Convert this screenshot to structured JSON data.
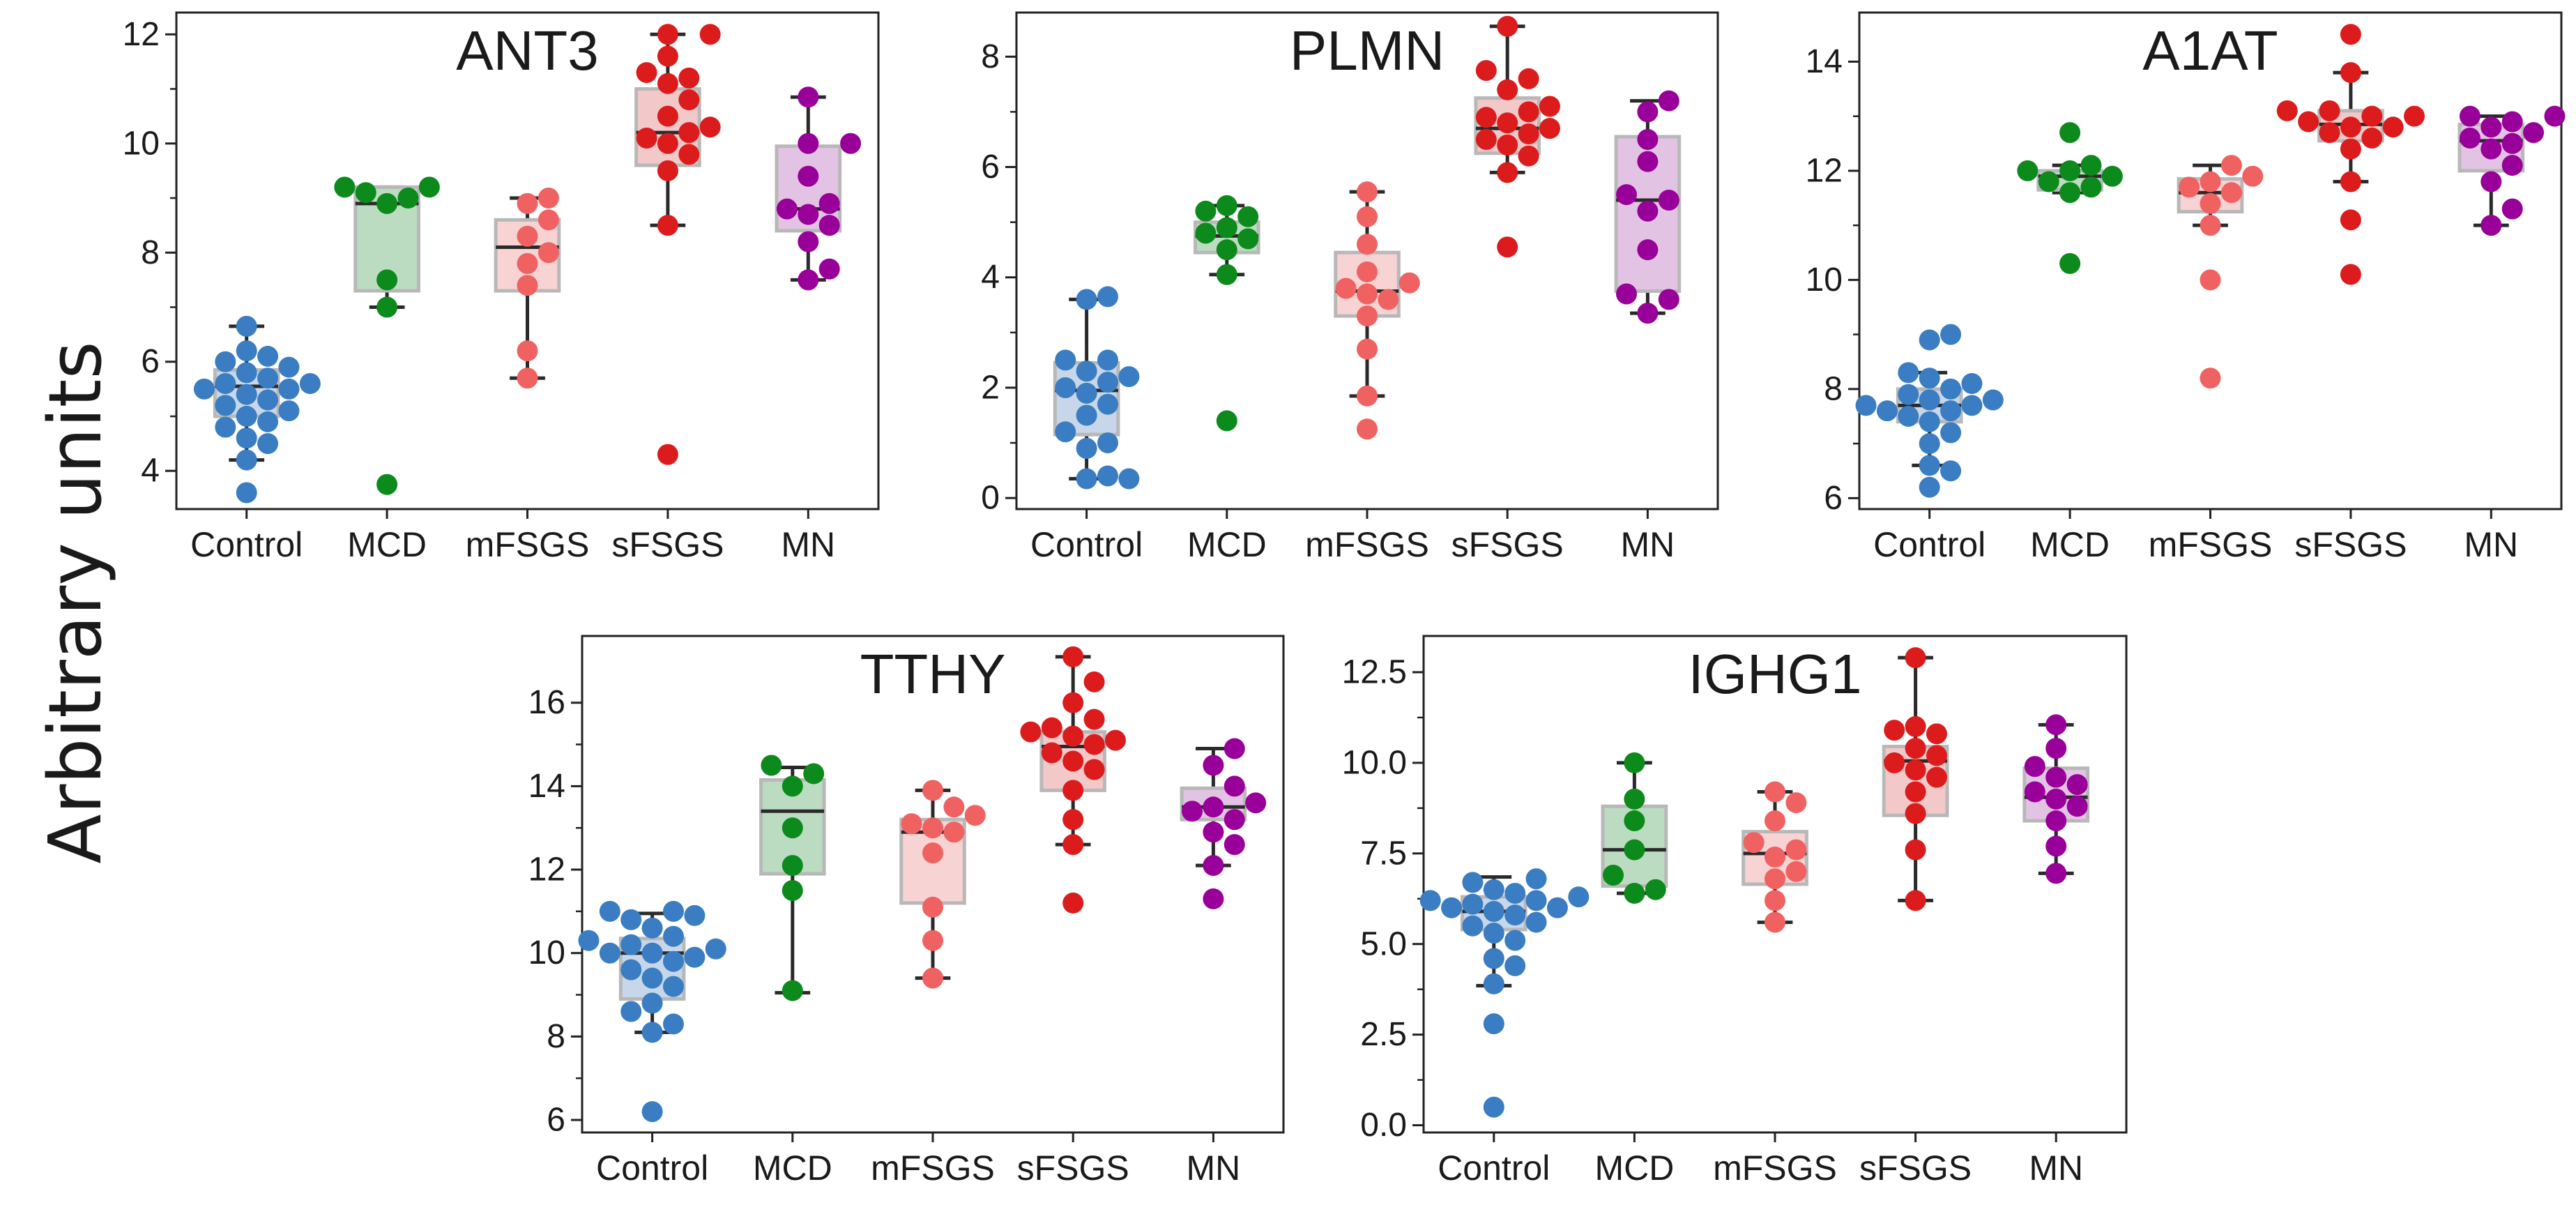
{
  "figure": {
    "ylabel": "Arbitrary units",
    "categories": [
      "Control",
      "MCD",
      "mFSGS",
      "sFSGS",
      "MN"
    ],
    "group_colors": {
      "Control": "#3a7dc2",
      "MCD": "#0c8a1c",
      "mFSGS": "#f06262",
      "sFSGS": "#dc1c1c",
      "MN": "#990099"
    },
    "box_fill_colors": {
      "Control": "#c7d6e8",
      "MCD": "#bcdcc2",
      "mFSGS": "#f8d3d3",
      "sFSGS": "#f3c8c8",
      "MN": "#e3c3e3"
    }
  },
  "chart_data": [
    {
      "type": "box_swarm",
      "title": "ANT3",
      "categories": [
        "Control",
        "MCD",
        "mFSGS",
        "sFSGS",
        "MN"
      ],
      "ylim": [
        3.3,
        12.4
      ],
      "yticks": [
        4,
        6,
        8,
        10,
        12
      ],
      "boxes": [
        {
          "group": "Control",
          "min": 4.2,
          "q1": 5.0,
          "median": 5.55,
          "q3": 5.85,
          "max": 6.65
        },
        {
          "group": "MCD",
          "min": 7.0,
          "q1": 7.3,
          "median": 8.9,
          "q3": 9.2,
          "max": 9.2
        },
        {
          "group": "mFSGS",
          "min": 5.7,
          "q1": 7.3,
          "median": 8.1,
          "q3": 8.6,
          "max": 9.0
        },
        {
          "group": "sFSGS",
          "min": 8.5,
          "q1": 9.6,
          "median": 10.2,
          "q3": 11.0,
          "max": 12.0
        },
        {
          "group": "MN",
          "min": 7.5,
          "q1": 8.4,
          "median": 8.8,
          "q3": 9.95,
          "max": 10.85
        }
      ],
      "points": {
        "Control": [
          3.6,
          4.2,
          4.5,
          4.6,
          4.8,
          4.9,
          5.0,
          5.1,
          5.2,
          5.3,
          5.4,
          5.5,
          5.5,
          5.6,
          5.6,
          5.7,
          5.8,
          5.9,
          6.0,
          6.1,
          6.2,
          6.65
        ],
        "MCD": [
          3.75,
          7.0,
          7.5,
          8.9,
          9.0,
          9.1,
          9.2,
          9.2
        ],
        "mFSGS": [
          5.7,
          6.2,
          7.4,
          7.8,
          8.0,
          8.3,
          8.6,
          8.9,
          9.0
        ],
        "sFSGS": [
          4.3,
          8.5,
          9.5,
          9.8,
          10.0,
          10.1,
          10.2,
          10.3,
          10.5,
          10.8,
          11.1,
          11.2,
          11.3,
          11.6,
          12.0,
          12.0
        ],
        "MN": [
          7.5,
          7.7,
          8.2,
          8.5,
          8.7,
          8.8,
          8.9,
          9.4,
          10.0,
          10.0,
          10.85
        ]
      }
    },
    {
      "type": "box_swarm",
      "title": "PLMN",
      "categories": [
        "Control",
        "MCD",
        "mFSGS",
        "sFSGS",
        "MN"
      ],
      "ylim": [
        -0.2,
        8.8
      ],
      "yticks": [
        0,
        2,
        4,
        6,
        8
      ],
      "boxes": [
        {
          "group": "Control",
          "min": 0.35,
          "q1": 1.15,
          "median": 1.95,
          "q3": 2.45,
          "max": 3.6
        },
        {
          "group": "MCD",
          "min": 4.05,
          "q1": 4.45,
          "median": 4.75,
          "q3": 5.0,
          "max": 5.3
        },
        {
          "group": "mFSGS",
          "min": 1.85,
          "q1": 3.3,
          "median": 3.75,
          "q3": 4.45,
          "max": 5.55
        },
        {
          "group": "sFSGS",
          "min": 5.9,
          "q1": 6.25,
          "median": 6.7,
          "q3": 7.25,
          "max": 8.55
        },
        {
          "group": "MN",
          "min": 3.35,
          "q1": 3.75,
          "median": 5.4,
          "q3": 6.55,
          "max": 7.2
        }
      ],
      "points": {
        "Control": [
          0.35,
          0.35,
          0.4,
          0.9,
          1.0,
          1.2,
          1.5,
          1.7,
          1.9,
          2.0,
          2.1,
          2.2,
          2.3,
          2.5,
          2.5,
          3.6,
          3.65
        ],
        "MCD": [
          1.4,
          4.05,
          4.5,
          4.7,
          4.8,
          4.9,
          5.1,
          5.2,
          5.3
        ],
        "mFSGS": [
          1.25,
          1.85,
          2.7,
          3.3,
          3.6,
          3.7,
          3.8,
          3.9,
          4.1,
          4.6,
          5.1,
          5.55
        ],
        "sFSGS": [
          4.55,
          5.9,
          6.2,
          6.4,
          6.5,
          6.6,
          6.7,
          6.8,
          6.9,
          7.0,
          7.1,
          7.4,
          7.6,
          7.75,
          8.55
        ],
        "MN": [
          3.35,
          3.6,
          3.7,
          4.5,
          5.2,
          5.4,
          5.5,
          6.1,
          6.5,
          7.0,
          7.2
        ]
      }
    },
    {
      "type": "box_swarm",
      "title": "A1AT",
      "categories": [
        "Control",
        "MCD",
        "mFSGS",
        "sFSGS",
        "MN"
      ],
      "ylim": [
        5.8,
        14.9
      ],
      "yticks": [
        6,
        8,
        10,
        12,
        14
      ],
      "boxes": [
        {
          "group": "Control",
          "min": 6.6,
          "q1": 7.4,
          "median": 7.7,
          "q3": 8.0,
          "max": 8.3
        },
        {
          "group": "MCD",
          "min": 11.6,
          "q1": 11.65,
          "median": 11.9,
          "q3": 12.0,
          "max": 12.1
        },
        {
          "group": "mFSGS",
          "min": 11.0,
          "q1": 11.25,
          "median": 11.6,
          "q3": 11.85,
          "max": 12.1
        },
        {
          "group": "sFSGS",
          "min": 11.8,
          "q1": 12.55,
          "median": 12.85,
          "q3": 13.1,
          "max": 13.8
        },
        {
          "group": "MN",
          "min": 11.0,
          "q1": 12.0,
          "median": 12.55,
          "q3": 12.85,
          "max": 13.0
        }
      ],
      "points": {
        "Control": [
          6.2,
          6.5,
          6.6,
          7.0,
          7.2,
          7.4,
          7.5,
          7.6,
          7.6,
          7.7,
          7.7,
          7.8,
          7.8,
          7.9,
          8.0,
          8.1,
          8.2,
          8.3,
          8.9,
          9.0
        ],
        "MCD": [
          10.3,
          11.6,
          11.7,
          11.8,
          11.9,
          12.0,
          12.0,
          12.1,
          12.7
        ],
        "mFSGS": [
          8.2,
          10.0,
          11.0,
          11.4,
          11.6,
          11.7,
          11.8,
          11.9,
          12.1
        ],
        "sFSGS": [
          10.1,
          11.1,
          11.8,
          12.4,
          12.6,
          12.7,
          12.8,
          12.8,
          12.9,
          13.0,
          13.0,
          13.1,
          13.1,
          13.8,
          14.5
        ],
        "MN": [
          11.0,
          11.3,
          11.8,
          12.1,
          12.4,
          12.5,
          12.6,
          12.7,
          12.8,
          12.9,
          13.0,
          13.0
        ]
      }
    },
    {
      "type": "box_swarm",
      "title": "TTHY",
      "categories": [
        "Control",
        "MCD",
        "mFSGS",
        "sFSGS",
        "MN"
      ],
      "ylim": [
        5.7,
        17.6
      ],
      "yticks": [
        6,
        8,
        10,
        12,
        14,
        16
      ],
      "boxes": [
        {
          "group": "Control",
          "min": 8.1,
          "q1": 8.9,
          "median": 10.0,
          "q3": 10.35,
          "max": 10.95
        },
        {
          "group": "MCD",
          "min": 9.05,
          "q1": 11.9,
          "median": 13.4,
          "q3": 14.15,
          "max": 14.45
        },
        {
          "group": "mFSGS",
          "min": 9.4,
          "q1": 11.2,
          "median": 12.9,
          "q3": 13.2,
          "max": 13.9
        },
        {
          "group": "sFSGS",
          "min": 12.6,
          "q1": 13.9,
          "median": 14.95,
          "q3": 15.3,
          "max": 17.1
        },
        {
          "group": "MN",
          "min": 12.1,
          "q1": 13.2,
          "median": 13.5,
          "q3": 13.95,
          "max": 14.9
        }
      ],
      "points": {
        "Control": [
          6.2,
          8.1,
          8.3,
          8.6,
          8.8,
          9.2,
          9.4,
          9.6,
          9.8,
          9.9,
          10.0,
          10.0,
          10.1,
          10.2,
          10.3,
          10.4,
          10.6,
          10.8,
          10.9,
          11.0,
          11.0
        ],
        "MCD": [
          9.1,
          11.5,
          12.1,
          13.0,
          14.0,
          14.3,
          14.5
        ],
        "mFSGS": [
          9.4,
          10.3,
          11.1,
          12.4,
          12.9,
          13.0,
          13.1,
          13.3,
          13.5,
          13.9
        ],
        "sFSGS": [
          11.2,
          12.6,
          13.2,
          13.9,
          14.4,
          14.6,
          14.8,
          15.0,
          15.1,
          15.2,
          15.3,
          15.4,
          15.6,
          16.0,
          16.5,
          17.1
        ],
        "MN": [
          11.3,
          12.1,
          12.6,
          12.9,
          13.2,
          13.4,
          13.5,
          13.6,
          14.0,
          14.5,
          14.9
        ]
      }
    },
    {
      "type": "box_swarm",
      "title": "IGHG1",
      "categories": [
        "Control",
        "MCD",
        "mFSGS",
        "sFSGS",
        "MN"
      ],
      "ylim": [
        -0.2,
        13.5
      ],
      "yticks": [
        0.0,
        2.5,
        5.0,
        7.5,
        10.0,
        12.5
      ],
      "ytick_labels": [
        "0.0",
        "2.5",
        "5.0",
        "7.5",
        "10.0",
        "12.5"
      ],
      "boxes": [
        {
          "group": "Control",
          "min": 3.85,
          "q1": 5.4,
          "median": 5.9,
          "q3": 6.3,
          "max": 6.85
        },
        {
          "group": "MCD",
          "min": 6.4,
          "q1": 6.6,
          "median": 7.6,
          "q3": 8.8,
          "max": 10.0
        },
        {
          "group": "mFSGS",
          "min": 5.6,
          "q1": 6.65,
          "median": 7.5,
          "q3": 8.1,
          "max": 9.2
        },
        {
          "group": "sFSGS",
          "min": 6.2,
          "q1": 8.55,
          "median": 10.05,
          "q3": 10.45,
          "max": 12.9
        },
        {
          "group": "MN",
          "min": 6.95,
          "q1": 8.4,
          "median": 9.05,
          "q3": 9.85,
          "max": 11.05
        }
      ],
      "points": {
        "Control": [
          0.5,
          2.8,
          3.9,
          4.4,
          4.6,
          5.1,
          5.3,
          5.5,
          5.6,
          5.8,
          5.9,
          6.0,
          6.0,
          6.1,
          6.2,
          6.2,
          6.3,
          6.4,
          6.5,
          6.7,
          6.8
        ],
        "MCD": [
          6.4,
          6.5,
          6.9,
          7.6,
          8.4,
          9.0,
          10.0
        ],
        "mFSGS": [
          5.6,
          6.2,
          6.8,
          7.0,
          7.4,
          7.6,
          7.8,
          8.4,
          8.9,
          9.2
        ],
        "sFSGS": [
          6.2,
          7.6,
          8.6,
          9.2,
          9.6,
          9.8,
          10.0,
          10.2,
          10.4,
          10.8,
          10.9,
          11.0,
          12.9
        ],
        "MN": [
          6.95,
          7.7,
          8.4,
          8.8,
          9.0,
          9.2,
          9.4,
          9.6,
          9.9,
          10.4,
          11.05
        ]
      }
    }
  ]
}
